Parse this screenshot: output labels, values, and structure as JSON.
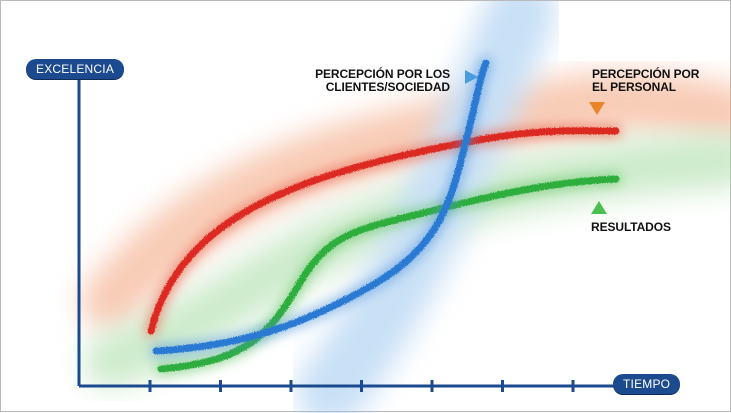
{
  "axes": {
    "y_label": "EXCELENCIA",
    "x_label": "TIEMPO",
    "x_tick_count": 7
  },
  "series": [
    {
      "id": "clients",
      "label_lines": [
        "PERCEPCIÓN POR LOS",
        "CLIENTES/SOCIEDAD"
      ],
      "color": "#2b7ad3",
      "glow": "#7fb3e8",
      "marker": "right-arrow"
    },
    {
      "id": "staff",
      "label_lines": [
        "PERCEPCIÓN POR",
        "EL PERSONAL"
      ],
      "color": "#dc2a22",
      "glow": "#f2a07a",
      "marker": "down-arrow"
    },
    {
      "id": "results",
      "label_lines": [
        "RESULTADOS"
      ],
      "color": "#2fae3e",
      "glow": "#9ad69a",
      "marker": "up-arrow"
    }
  ],
  "colors": {
    "axis": "#1c4a8f",
    "arrow_blue": "#4a9be0",
    "arrow_orange": "#e8852a",
    "arrow_green": "#4cbf52"
  }
}
